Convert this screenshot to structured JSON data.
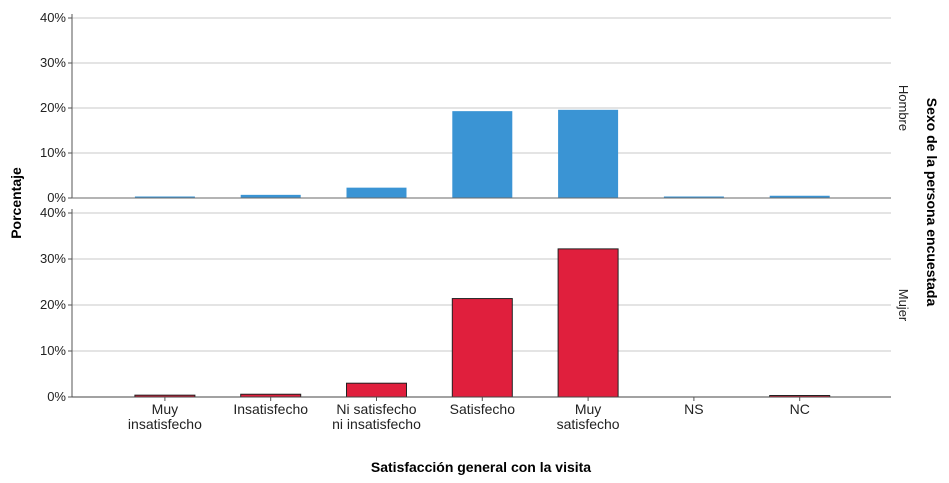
{
  "chart_data": {
    "type": "bar",
    "layout": "faceted-vertical",
    "categories": [
      "Muy\ninsatisfecho",
      "Insatisfecho",
      "Ni satisfecho\nni insatisfecho",
      "Satisfecho",
      "Muy\nsatisfecho",
      "NS",
      "NC"
    ],
    "xlabel": "Satisfacción general con la visita",
    "ylabel": "Porcentaje",
    "facet_title": "Sexo de la persona encuestada",
    "ylim": [
      0,
      40
    ],
    "yticks": [
      "0%",
      "10%",
      "20%",
      "30%",
      "40%"
    ],
    "grid": "horizontal",
    "series": [
      {
        "name": "Hombre",
        "color": "#3a94d4",
        "values": [
          0.3,
          0.7,
          2.3,
          19.3,
          19.6,
          0.1,
          0.5
        ]
      },
      {
        "name": "Mujer",
        "color": "#e01f3d",
        "values": [
          0.4,
          0.6,
          3.0,
          21.4,
          32.2,
          0.0,
          0.3
        ]
      }
    ]
  }
}
